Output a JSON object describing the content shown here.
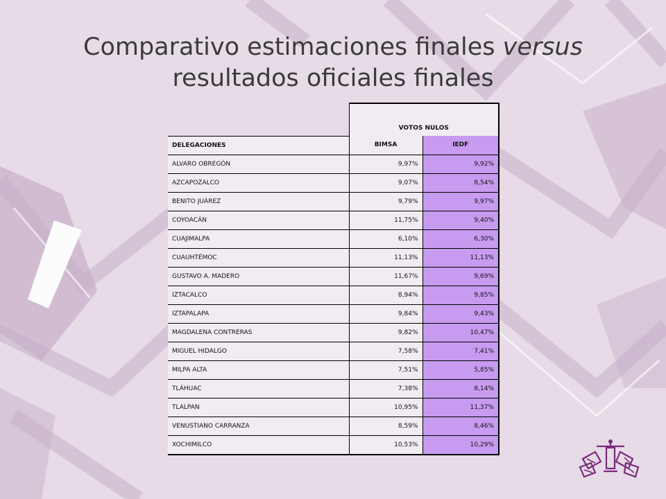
{
  "title": {
    "part1": "Comparativo estimaciones finales ",
    "italic": "versus",
    "part2": " resultados oficiales finales"
  },
  "table": {
    "group_header": "VOTOS NULOS",
    "columns": [
      "DELEGACIONES",
      "BIMSA",
      "IEDF"
    ],
    "rows": [
      [
        "ALVARO OBREGÓN",
        "9,97%",
        "9,92%"
      ],
      [
        "AZCAPOZALCO",
        "9,07%",
        "8,54%"
      ],
      [
        "BENITO JUÁREZ",
        "9,79%",
        "9,97%"
      ],
      [
        "COYOACÁN",
        "11,75%",
        "9,40%"
      ],
      [
        "CUAJIMALPA",
        "6,10%",
        "6,30%"
      ],
      [
        "CUAUHTÉMOC",
        "11,13%",
        "11,13%"
      ],
      [
        "GUSTAVO A. MADERO",
        "11,67%",
        "9,69%"
      ],
      [
        "IZTACALCO",
        "8,94%",
        "9,85%"
      ],
      [
        "IZTAPALAPA",
        "9,84%",
        "9,43%"
      ],
      [
        "MAGDALENA CONTRERAS",
        "9,82%",
        "10,47%"
      ],
      [
        "MIGUEL HIDALGO",
        "7,58%",
        "7,41%"
      ],
      [
        "MILPA ALTA",
        "7,51%",
        "5,85%"
      ],
      [
        "TLÁHUAC",
        "7,38%",
        "8,14%"
      ],
      [
        "TLALPAN",
        "10,95%",
        "11,37%"
      ],
      [
        "VENUSTIANO CARRANZA",
        "8,59%",
        "8,46%"
      ],
      [
        "XOCHIMILCO",
        "10,53%",
        "10,29%"
      ]
    ]
  },
  "colors": {
    "background": "#e6dbe6",
    "iedf_column": "#c79bf0",
    "cell_background": "#f1ecf2"
  },
  "decorations": [
    "background-envelope-pattern",
    "ballot-box-logo"
  ]
}
